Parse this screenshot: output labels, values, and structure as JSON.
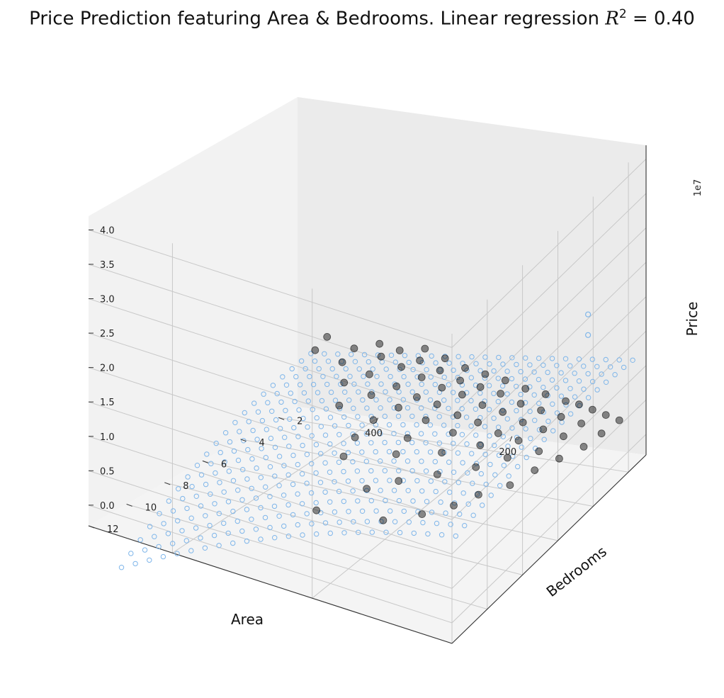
{
  "chart_data": {
    "type": "scatter",
    "title": {
      "prefix": "Price Prediction featuring Area & Bedrooms. Linear regression ",
      "r2_symbol": "R",
      "r2_exponent": "2",
      "r2_equals": " = 0.40"
    },
    "xlabel": "Area",
    "ylabel": "Bedrooms",
    "zlabel": "Price",
    "z_offset_label": "1e7",
    "x_ticks": [
      "400",
      "200"
    ],
    "y_ticks": [
      "2",
      "4",
      "6",
      "8",
      "10",
      "12"
    ],
    "z_ticks": [
      "0.0",
      "0.5",
      "1.0",
      "1.5",
      "2.0",
      "2.5",
      "3.0",
      "3.5",
      "4.0"
    ],
    "xlim": [
      0,
      520
    ],
    "ylim": [
      1,
      12
    ],
    "zlim": [
      -0.3,
      4.2
    ],
    "grid": true,
    "surface_color": "#7fb6ea",
    "point_color": "#000000",
    "series": [
      {
        "kind": "prediction-surface",
        "description_values": "predicted price (1e7) over an Area × Bedrooms grid",
        "area_range": [
          20,
          500
        ],
        "bedrooms_range": [
          1,
          11
        ],
        "area_values": [
          20,
          40,
          60,
          80,
          100,
          120,
          140,
          160,
          180,
          200,
          220,
          240,
          260,
          280,
          300,
          320,
          340,
          360,
          380,
          400,
          420,
          440,
          460,
          480,
          500
        ],
        "bedrooms_values": [
          1,
          1.5,
          2,
          2.5,
          3,
          3.5,
          4,
          4.5,
          5,
          5.5,
          6,
          6.5,
          7,
          7.5,
          8,
          8.5,
          9,
          9.5,
          10,
          10.5,
          11
        ]
      },
      {
        "kind": "observed",
        "points_area_bedrooms_price": [
          [
            40,
            1,
            0.15
          ],
          [
            60,
            1,
            0.2
          ],
          [
            80,
            1,
            0.25
          ],
          [
            100,
            1,
            0.3
          ],
          [
            120,
            1,
            0.32
          ],
          [
            150,
            1,
            0.38
          ],
          [
            180,
            1,
            0.42
          ],
          [
            210,
            1,
            0.5
          ],
          [
            240,
            1,
            0.55
          ],
          [
            270,
            1,
            0.6
          ],
          [
            300,
            1,
            0.7
          ],
          [
            330,
            1,
            0.8
          ],
          [
            40,
            2,
            0.2
          ],
          [
            70,
            2,
            0.3
          ],
          [
            100,
            2,
            0.35
          ],
          [
            130,
            2,
            0.4
          ],
          [
            160,
            2,
            0.45
          ],
          [
            190,
            2,
            0.55
          ],
          [
            220,
            2,
            0.6
          ],
          [
            250,
            2,
            0.65
          ],
          [
            280,
            2,
            0.75
          ],
          [
            310,
            2,
            0.85
          ],
          [
            340,
            2,
            0.95
          ],
          [
            370,
            2,
            1.0
          ],
          [
            40,
            3,
            0.25
          ],
          [
            70,
            3,
            0.35
          ],
          [
            100,
            3,
            0.4
          ],
          [
            130,
            3,
            0.45
          ],
          [
            160,
            3,
            0.55
          ],
          [
            190,
            3,
            0.6
          ],
          [
            220,
            3,
            0.7
          ],
          [
            250,
            3,
            0.75
          ],
          [
            280,
            3,
            0.85
          ],
          [
            310,
            3,
            0.95
          ],
          [
            340,
            3,
            1.05
          ],
          [
            380,
            3,
            1.1
          ],
          [
            420,
            3,
            1.2
          ],
          [
            50,
            4,
            0.3
          ],
          [
            80,
            4,
            0.35
          ],
          [
            110,
            4,
            0.45
          ],
          [
            140,
            4,
            0.5
          ],
          [
            170,
            4,
            0.6
          ],
          [
            200,
            4,
            0.65
          ],
          [
            230,
            4,
            0.75
          ],
          [
            260,
            4,
            0.8
          ],
          [
            290,
            4,
            0.9
          ],
          [
            330,
            4,
            1.0
          ],
          [
            370,
            4,
            1.1
          ],
          [
            410,
            4,
            1.2
          ],
          [
            60,
            5,
            0.35
          ],
          [
            100,
            5,
            0.45
          ],
          [
            140,
            5,
            0.55
          ],
          [
            180,
            5,
            0.65
          ],
          [
            220,
            5,
            0.75
          ],
          [
            260,
            5,
            0.85
          ],
          [
            300,
            5,
            0.95
          ],
          [
            340,
            5,
            1.05
          ],
          [
            70,
            6,
            0.35
          ],
          [
            120,
            6,
            0.5
          ],
          [
            170,
            6,
            0.6
          ],
          [
            220,
            6,
            0.7
          ],
          [
            270,
            6,
            0.85
          ],
          [
            320,
            6,
            0.95
          ],
          [
            90,
            7,
            0.4
          ],
          [
            150,
            7,
            0.55
          ],
          [
            210,
            7,
            0.7
          ],
          [
            270,
            7,
            0.8
          ],
          [
            100,
            8,
            0.45
          ],
          [
            180,
            8,
            0.6
          ],
          [
            260,
            8,
            0.75
          ],
          [
            120,
            9,
            0.5
          ],
          [
            200,
            9,
            0.65
          ],
          [
            150,
            10,
            0.55
          ],
          [
            220,
            11,
            0.7
          ],
          [
            60,
            2,
            1.9
          ],
          [
            60,
            2,
            1.6
          ]
        ]
      }
    ]
  }
}
